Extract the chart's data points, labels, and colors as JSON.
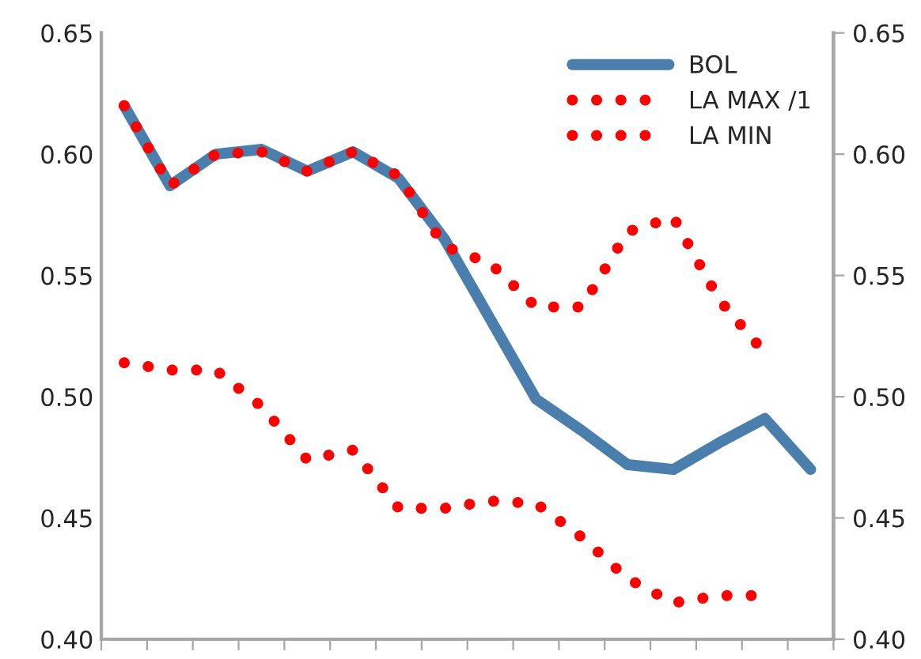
{
  "chart_data": {
    "type": "line",
    "categories": [
      null,
      null,
      null,
      null,
      null,
      null,
      null,
      null,
      null,
      null,
      null,
      null,
      null,
      null,
      null,
      null
    ],
    "series": [
      {
        "name": "BOL",
        "color": "#4a7eac",
        "line_style": "solid",
        "values": [
          0.62,
          0.587,
          0.6,
          0.602,
          0.593,
          0.601,
          0.59,
          0.565,
          0.532,
          0.499,
          0.486,
          0.472,
          0.47,
          0.481,
          0.491,
          0.47
        ]
      },
      {
        "name": "LA MAX /1",
        "color": "#ff0000",
        "line_style": "dotted",
        "values": [
          0.62,
          0.587,
          0.6,
          0.601,
          0.593,
          0.601,
          0.591,
          0.562,
          0.555,
          0.537,
          0.537,
          0.568,
          0.574,
          0.54,
          0.518,
          null
        ]
      },
      {
        "name": "LA MIN",
        "color": "#ff0000",
        "line_style": "dotted",
        "values": [
          0.514,
          0.511,
          0.511,
          0.496,
          0.474,
          0.478,
          0.454,
          0.454,
          0.457,
          0.456,
          0.442,
          0.425,
          0.415,
          0.418,
          0.418,
          null
        ]
      }
    ],
    "ylim": [
      0.4,
      0.65
    ],
    "yticks": [
      {
        "value": 0.4,
        "label": "0.40"
      },
      0.45,
      {
        "value": 0.5,
        "label": "0.50"
      },
      0.55,
      {
        "value": 0.6,
        "label": "0.60"
      },
      0.65
    ],
    "y2lim": [
      0.4,
      0.65
    ],
    "y2ticks": [
      {
        "value": 0.4,
        "label": "0.40"
      },
      0.45,
      {
        "value": 0.5,
        "label": "0.50"
      },
      0.55,
      {
        "value": 0.6,
        "label": "0.60"
      },
      0.65
    ],
    "legend": "top right",
    "grid": false
  }
}
